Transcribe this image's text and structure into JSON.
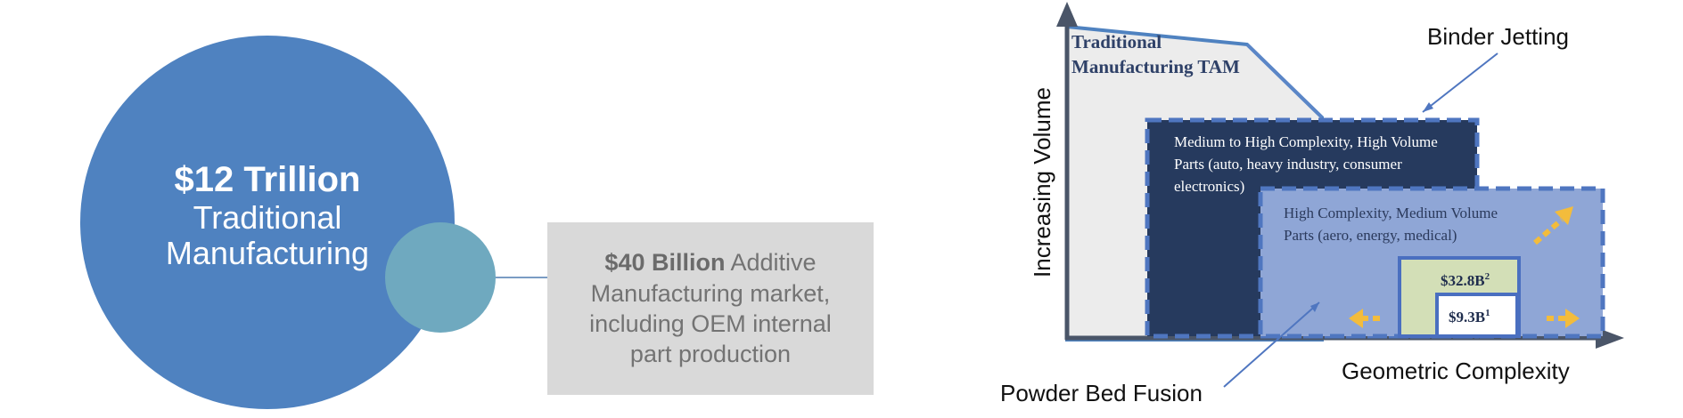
{
  "left_diagram": {
    "big_circle": {
      "amount": "$12 Trillion",
      "label_line1": "Traditional",
      "label_line2": "Manufacturing"
    },
    "additive_box": {
      "amount": "$40 Billion",
      "text_line1": " Additive",
      "text_line2": "Manufacturing market,",
      "text_line3": "including OEM internal",
      "text_line4": "part production"
    }
  },
  "right_diagram": {
    "y_axis_label": "Increasing Volume",
    "x_axis_label": "Geometric Complexity",
    "tam_label_line1": "Traditional",
    "tam_label_line2": "Manufacturing TAM",
    "binder_callout": "Binder Jetting",
    "powder_callout": "Powder Bed Fusion",
    "dark_box": {
      "line1": "Medium to High Complexity, High Volume",
      "line2": "Parts (auto, heavy industry, consumer",
      "line3": "electronics)"
    },
    "light_box": {
      "line1": "High Complexity, Medium Volume",
      "line2": "Parts (aero, energy, medical)"
    },
    "green_box": {
      "value": "$32.8B",
      "sup": "2"
    },
    "white_box": {
      "value": "$9.3B",
      "sup": "1"
    }
  },
  "colors": {
    "big_circle": "#4f82c0",
    "small_circle": "#6fa9bf",
    "dark_box": "#263a5e",
    "light_box": "#8fa6d6",
    "green_box": "#d3dfb7",
    "arrow_yellow": "#f3bc3c"
  }
}
